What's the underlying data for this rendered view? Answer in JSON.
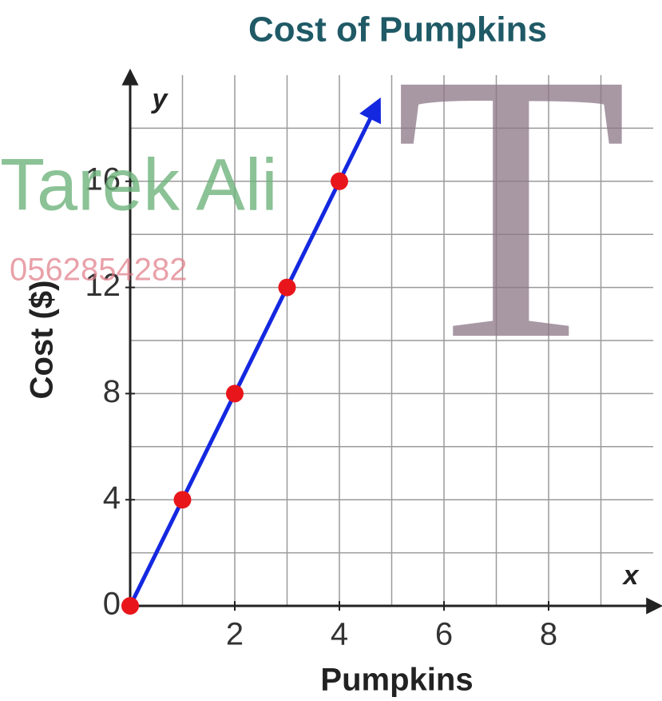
{
  "chart_data": {
    "type": "scatter",
    "title": "Cost of Pumpkins",
    "x_label": "Pumpkins",
    "y_label": "Cost ($)",
    "x_axis_letter": "x",
    "y_axis_letter": "y",
    "x": [
      0,
      1,
      2,
      3,
      4
    ],
    "values": [
      0,
      4,
      8,
      12,
      16
    ],
    "color": "#e8161b",
    "line": {
      "x": [
        0,
        4.75
      ],
      "values": [
        0,
        19
      ],
      "color": "#1428e0"
    },
    "xlim": [
      0,
      10
    ],
    "ylim": [
      0,
      20
    ],
    "xticks": [
      2,
      4,
      6,
      8
    ],
    "yticks": [
      0,
      4,
      8,
      12,
      16
    ],
    "x_grid": [
      1,
      2,
      3,
      4,
      5,
      6,
      7,
      8,
      9
    ],
    "y_grid": [
      2,
      4,
      6,
      8,
      10,
      12,
      14,
      16,
      18
    ],
    "grid": true,
    "watermarks": {
      "letter": "T",
      "name": "Tarek Ali",
      "phone": "0562854282"
    }
  }
}
